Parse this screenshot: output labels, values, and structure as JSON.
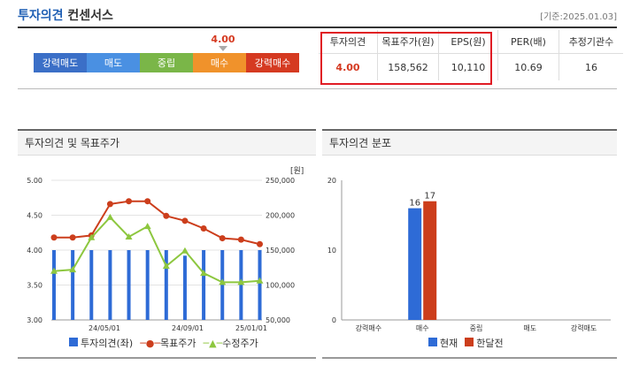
{
  "header": {
    "title_part1": "투자의견",
    "title_part2": "컨센서스",
    "date": "[기준:2025.01.03]"
  },
  "opinion_scale": {
    "items": [
      {
        "label": "강력매도",
        "color": "#3b6fc7"
      },
      {
        "label": "매도",
        "color": "#4a90e2"
      },
      {
        "label": "중립",
        "color": "#7ab648"
      },
      {
        "label": "매수",
        "color": "#f0922b"
      },
      {
        "label": "강력매수",
        "color": "#d53a21"
      }
    ],
    "current_value": "4.00"
  },
  "consensus_table": {
    "headers": [
      "투자의견",
      "목표주가(원)",
      "EPS(원)",
      "PER(배)",
      "추정기관수"
    ],
    "values": [
      "4.00",
      "158,562",
      "10,110",
      "10.69",
      "16"
    ]
  },
  "left_panel": {
    "title": "투자의견 및 목표주가",
    "unit": "[원]"
  },
  "right_panel": {
    "title": "투자의견 분포"
  },
  "chart_data": [
    {
      "type": "bar+line",
      "x_ticks": [
        "24/05/01",
        "24/09/01",
        "25/01/01"
      ],
      "y_left": {
        "range": [
          3.0,
          5.0
        ],
        "ticks": [
          "5.00",
          "4.50",
          "4.00",
          "3.50",
          "3.00"
        ]
      },
      "y_right": {
        "range": [
          50000,
          250000
        ],
        "ticks": [
          "250,000",
          "200,000",
          "150,000",
          "100,000",
          "50,000"
        ]
      },
      "bars_opinion": [
        4,
        4,
        4,
        4,
        4,
        4,
        4,
        3.92,
        4,
        4,
        4,
        4
      ],
      "series": [
        {
          "name": "투자의견(좌)",
          "color": "#2e6bd6"
        },
        {
          "name": "목표주가",
          "color": "#cc3e1c",
          "values": [
            168000,
            168000,
            171000,
            216000,
            220000,
            220000,
            199000,
            192000,
            181000,
            167000,
            165000,
            158562
          ]
        },
        {
          "name": "수정주가",
          "color": "#8dc73f",
          "values": [
            120000,
            122000,
            168000,
            197000,
            169000,
            184000,
            127000,
            149000,
            117000,
            104000,
            104000,
            106000
          ]
        }
      ]
    },
    {
      "type": "bar",
      "categories": [
        "강력매수",
        "매수",
        "중립",
        "매도",
        "강력매도"
      ],
      "y_ticks": [
        "20",
        "10",
        "0"
      ],
      "ylim": [
        0,
        20
      ],
      "series": [
        {
          "name": "현재",
          "color": "#2e6bd6",
          "values": [
            0,
            16,
            0,
            0,
            0
          ]
        },
        {
          "name": "한달전",
          "color": "#cc3e1c",
          "values": [
            0,
            17,
            0,
            0,
            0
          ]
        }
      ]
    }
  ]
}
